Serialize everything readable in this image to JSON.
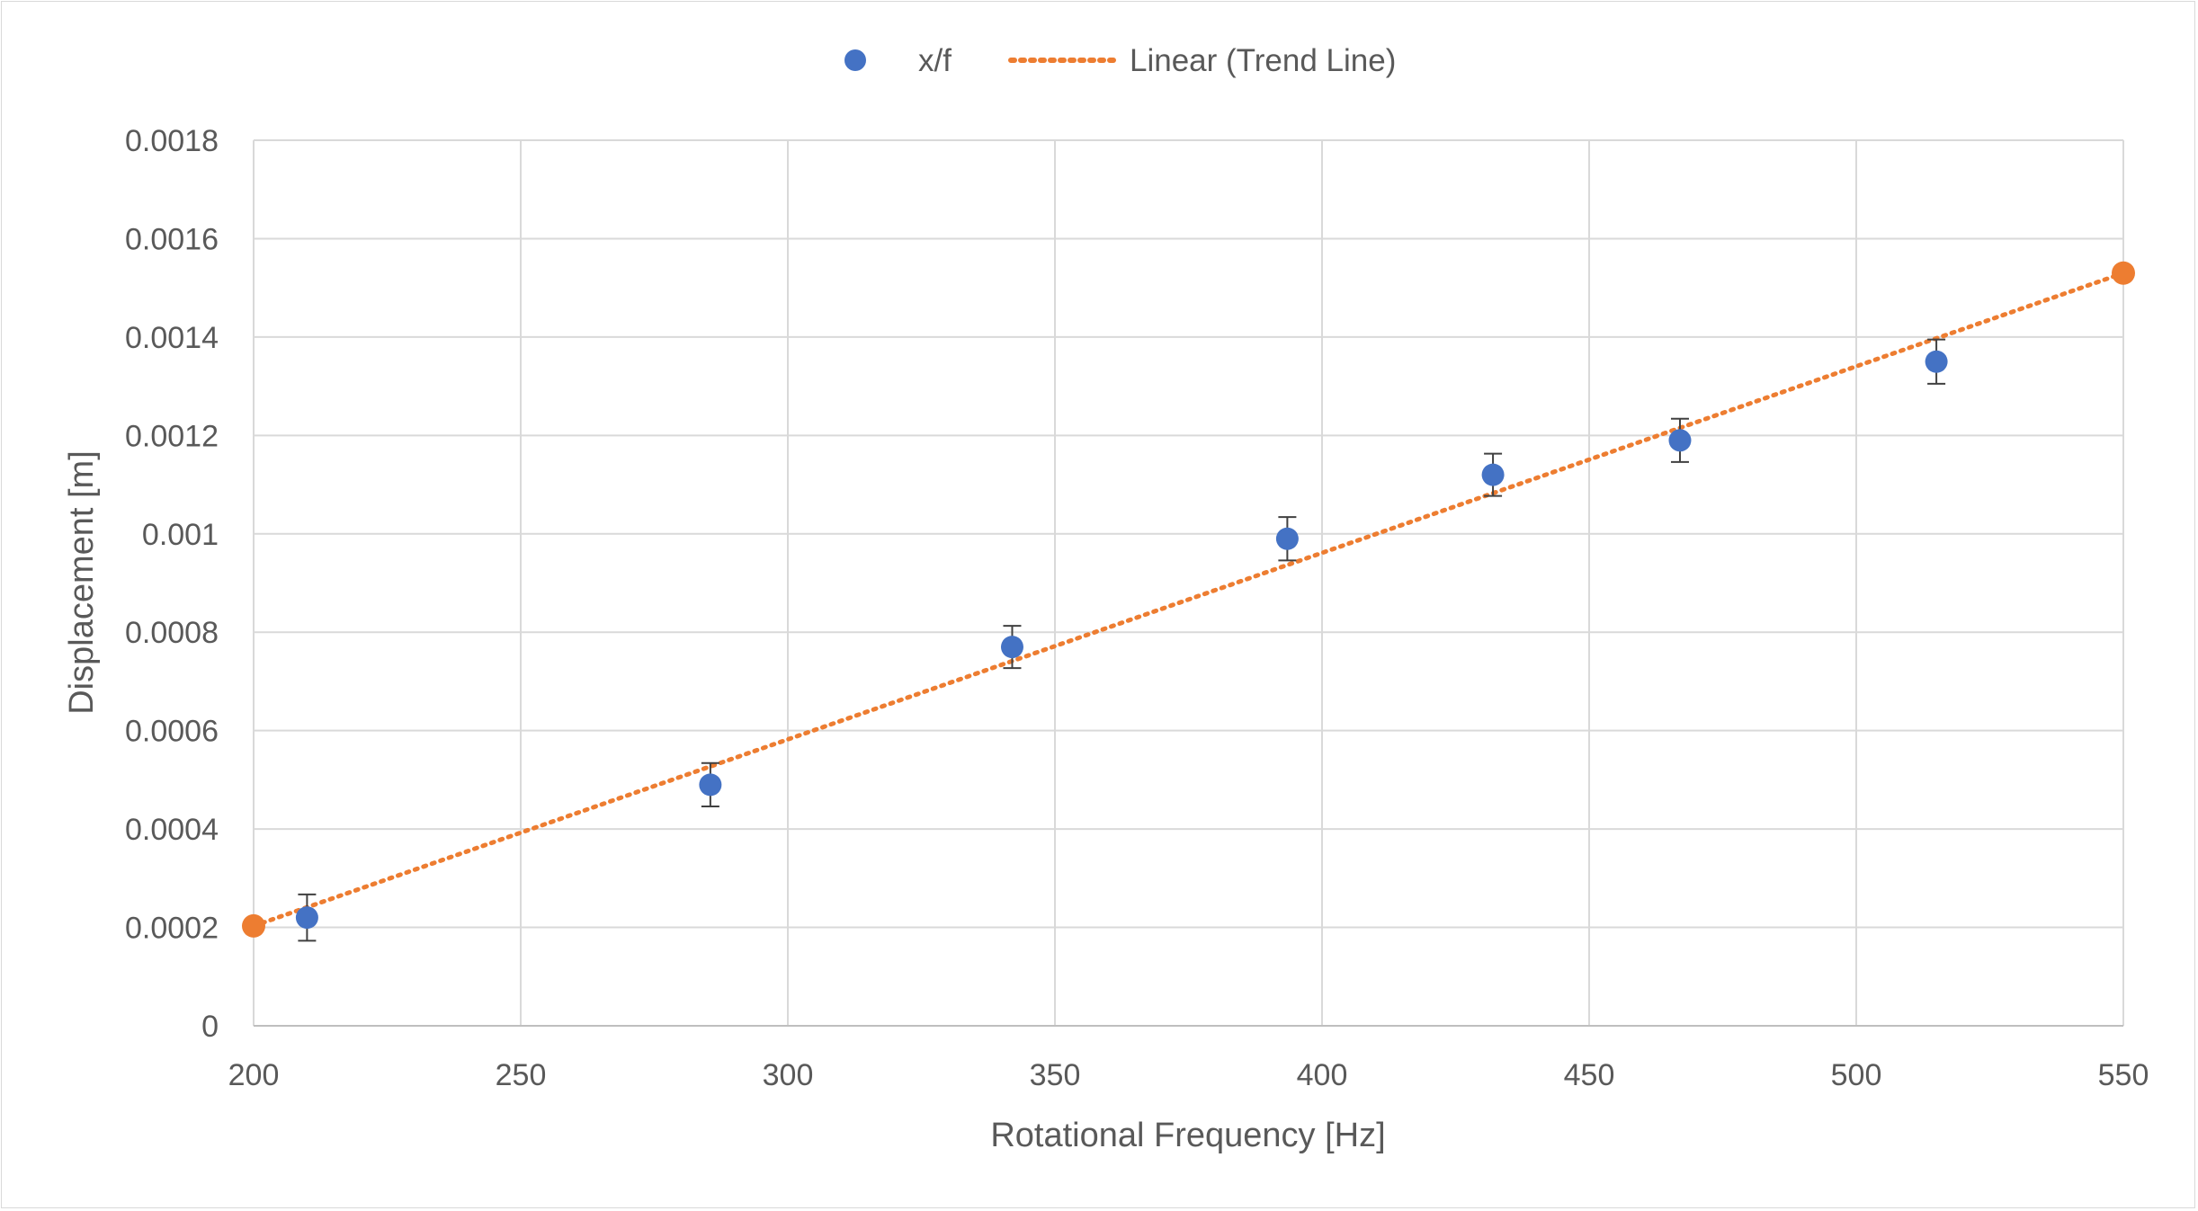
{
  "chart_data": {
    "type": "scatter",
    "title": "",
    "xlabel": "Rotational Frequency [Hz]",
    "ylabel": "Displacement [m]",
    "xlim": [
      200,
      550
    ],
    "ylim": [
      0,
      0.0018
    ],
    "x_ticks": [
      200,
      250,
      300,
      350,
      400,
      450,
      500,
      550
    ],
    "x_tick_labels": [
      "200",
      "250",
      "300",
      "350",
      "400",
      "450",
      "500",
      "550"
    ],
    "y_ticks": [
      0,
      0.0002,
      0.0004,
      0.0006,
      0.0008,
      0.001,
      0.0012,
      0.0014,
      0.0016,
      0.0018
    ],
    "y_tick_labels": [
      "0",
      "0.0002",
      "0.0004",
      "0.0006",
      "0.0008",
      "0.001",
      "0.0012",
      "0.0014",
      "0.0016",
      "0.0018"
    ],
    "grid": true,
    "legend_position": "top-center",
    "series": [
      {
        "name": "x/f",
        "kind": "scatter",
        "color": "#4472C4",
        "x": [
          210,
          285.5,
          342,
          393.5,
          432,
          467,
          515
        ],
        "y": [
          0.00022,
          0.00049,
          0.00077,
          0.00099,
          0.00112,
          0.00119,
          0.00135
        ],
        "error": [
          4.7e-05,
          4.4e-05,
          4.3e-05,
          4.4e-05,
          4.3e-05,
          4.4e-05,
          4.5e-05
        ]
      },
      {
        "name": "Linear (Trend Line)",
        "kind": "line",
        "style": "dotted",
        "color": "#ED7D31",
        "x": [
          200,
          550
        ],
        "y": [
          0.000203,
          0.00153
        ]
      }
    ],
    "colors": {
      "grid": "#d9d9d9",
      "axis": "#bfbfbf",
      "error_bar": "#404040",
      "text": "#595959"
    }
  }
}
